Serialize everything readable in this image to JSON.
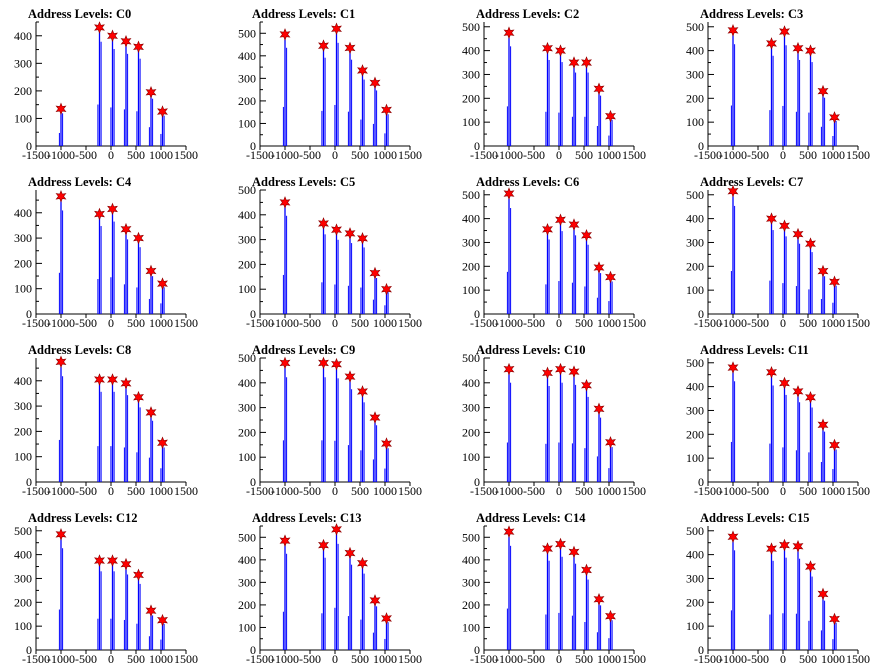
{
  "colors": {
    "background": "#ffffff",
    "axis": "#000000",
    "histogram": "#0000ff",
    "marker_fill": "#ff0000",
    "marker_stroke": "#8b0000"
  },
  "chart_data": [
    {
      "type": "bar",
      "title": "Address Levels: C0",
      "xlim": [
        -1500,
        1500
      ],
      "ylim": [
        0,
        450
      ],
      "ytick_step": 100,
      "xticks": [
        "-1500",
        "-1000",
        "-500",
        "0",
        "500",
        "1000",
        "1500"
      ],
      "peaks": [
        {
          "x": -1000,
          "y": 135
        },
        {
          "x": -230,
          "y": 430
        },
        {
          "x": 30,
          "y": 400
        },
        {
          "x": 300,
          "y": 380
        },
        {
          "x": 550,
          "y": 360
        },
        {
          "x": 800,
          "y": 195
        },
        {
          "x": 1030,
          "y": 125
        }
      ]
    },
    {
      "type": "bar",
      "title": "Address Levels: C1",
      "xlim": [
        -1500,
        1500
      ],
      "ylim": [
        0,
        550
      ],
      "ytick_step": 100,
      "xticks": [
        "-1500",
        "-1000",
        "-500",
        "0",
        "500",
        "1000",
        "1500"
      ],
      "peaks": [
        {
          "x": -1000,
          "y": 495
        },
        {
          "x": -230,
          "y": 445
        },
        {
          "x": 30,
          "y": 520
        },
        {
          "x": 300,
          "y": 435
        },
        {
          "x": 550,
          "y": 335
        },
        {
          "x": 800,
          "y": 280
        },
        {
          "x": 1030,
          "y": 160
        }
      ]
    },
    {
      "type": "bar",
      "title": "Address Levels: C2",
      "xlim": [
        -1500,
        1500
      ],
      "ylim": [
        0,
        520
      ],
      "ytick_step": 100,
      "xticks": [
        "-1500",
        "-1000",
        "-500",
        "0",
        "500",
        "1000",
        "1500"
      ],
      "peaks": [
        {
          "x": -1000,
          "y": 475
        },
        {
          "x": -230,
          "y": 410
        },
        {
          "x": 30,
          "y": 400
        },
        {
          "x": 300,
          "y": 350
        },
        {
          "x": 550,
          "y": 350
        },
        {
          "x": 800,
          "y": 240
        },
        {
          "x": 1030,
          "y": 125
        }
      ]
    },
    {
      "type": "bar",
      "title": "Address Levels: C3",
      "xlim": [
        -1500,
        1500
      ],
      "ylim": [
        0,
        520
      ],
      "ytick_step": 100,
      "xticks": [
        "-1500",
        "-1000",
        "-500",
        "0",
        "500",
        "1000",
        "1500"
      ],
      "peaks": [
        {
          "x": -1000,
          "y": 485
        },
        {
          "x": -230,
          "y": 430
        },
        {
          "x": 30,
          "y": 480
        },
        {
          "x": 300,
          "y": 410
        },
        {
          "x": 550,
          "y": 400
        },
        {
          "x": 800,
          "y": 230
        },
        {
          "x": 1030,
          "y": 120
        }
      ]
    },
    {
      "type": "bar",
      "title": "Address Levels: C4",
      "xlim": [
        -1500,
        1500
      ],
      "ylim": [
        0,
        490
      ],
      "ytick_step": 100,
      "xticks": [
        "-1500",
        "-1000",
        "-500",
        "0",
        "500",
        "1000",
        "1500"
      ],
      "peaks": [
        {
          "x": -1000,
          "y": 465
        },
        {
          "x": -230,
          "y": 395
        },
        {
          "x": 30,
          "y": 415
        },
        {
          "x": 300,
          "y": 335
        },
        {
          "x": 550,
          "y": 300
        },
        {
          "x": 800,
          "y": 170
        },
        {
          "x": 1030,
          "y": 120
        }
      ]
    },
    {
      "type": "bar",
      "title": "Address Levels: C5",
      "xlim": [
        -1500,
        1500
      ],
      "ylim": [
        0,
        500
      ],
      "ytick_step": 100,
      "xticks": [
        "-1500",
        "-1000",
        "-500",
        "0",
        "500",
        "1000",
        "1500"
      ],
      "peaks": [
        {
          "x": -1000,
          "y": 450
        },
        {
          "x": -230,
          "y": 365
        },
        {
          "x": 30,
          "y": 340
        },
        {
          "x": 300,
          "y": 325
        },
        {
          "x": 550,
          "y": 305
        },
        {
          "x": 800,
          "y": 165
        },
        {
          "x": 1030,
          "y": 100
        }
      ]
    },
    {
      "type": "bar",
      "title": "Address Levels: C6",
      "xlim": [
        -1500,
        1500
      ],
      "ylim": [
        0,
        520
      ],
      "ytick_step": 100,
      "xticks": [
        "-1500",
        "-1000",
        "-500",
        "0",
        "500",
        "1000",
        "1500"
      ],
      "peaks": [
        {
          "x": -1000,
          "y": 505
        },
        {
          "x": -230,
          "y": 355
        },
        {
          "x": 30,
          "y": 395
        },
        {
          "x": 300,
          "y": 375
        },
        {
          "x": 550,
          "y": 330
        },
        {
          "x": 800,
          "y": 195
        },
        {
          "x": 1030,
          "y": 155
        }
      ]
    },
    {
      "type": "bar",
      "title": "Address Levels: C7",
      "xlim": [
        -1500,
        1500
      ],
      "ylim": [
        0,
        520
      ],
      "ytick_step": 100,
      "xticks": [
        "-1500",
        "-1000",
        "-500",
        "0",
        "500",
        "1000",
        "1500"
      ],
      "peaks": [
        {
          "x": -1000,
          "y": 515
        },
        {
          "x": -230,
          "y": 400
        },
        {
          "x": 30,
          "y": 370
        },
        {
          "x": 300,
          "y": 335
        },
        {
          "x": 550,
          "y": 295
        },
        {
          "x": 800,
          "y": 180
        },
        {
          "x": 1030,
          "y": 135
        }
      ]
    },
    {
      "type": "bar",
      "title": "Address Levels: C8",
      "xlim": [
        -1500,
        1500
      ],
      "ylim": [
        0,
        490
      ],
      "ytick_step": 100,
      "xticks": [
        "-1500",
        "-1000",
        "-500",
        "0",
        "500",
        "1000",
        "1500"
      ],
      "peaks": [
        {
          "x": -1000,
          "y": 475
        },
        {
          "x": -230,
          "y": 405
        },
        {
          "x": 30,
          "y": 405
        },
        {
          "x": 300,
          "y": 390
        },
        {
          "x": 550,
          "y": 335
        },
        {
          "x": 800,
          "y": 275
        },
        {
          "x": 1030,
          "y": 155
        }
      ]
    },
    {
      "type": "bar",
      "title": "Address Levels: C9",
      "xlim": [
        -1500,
        1500
      ],
      "ylim": [
        0,
        500
      ],
      "ytick_step": 100,
      "xticks": [
        "-1500",
        "-1000",
        "-500",
        "0",
        "500",
        "1000",
        "1500"
      ],
      "peaks": [
        {
          "x": -1000,
          "y": 480
        },
        {
          "x": -230,
          "y": 480
        },
        {
          "x": 30,
          "y": 475
        },
        {
          "x": 300,
          "y": 425
        },
        {
          "x": 550,
          "y": 365
        },
        {
          "x": 800,
          "y": 260
        },
        {
          "x": 1030,
          "y": 155
        }
      ]
    },
    {
      "type": "bar",
      "title": "Address Levels: C10",
      "xlim": [
        -1500,
        1500
      ],
      "ylim": [
        0,
        500
      ],
      "ytick_step": 100,
      "xticks": [
        "-1500",
        "-1000",
        "-500",
        "0",
        "500",
        "1000",
        "1500"
      ],
      "peaks": [
        {
          "x": -1000,
          "y": 455
        },
        {
          "x": -230,
          "y": 440
        },
        {
          "x": 30,
          "y": 455
        },
        {
          "x": 300,
          "y": 445
        },
        {
          "x": 550,
          "y": 390
        },
        {
          "x": 800,
          "y": 295
        },
        {
          "x": 1030,
          "y": 160
        }
      ]
    },
    {
      "type": "bar",
      "title": "Address Levels: C11",
      "xlim": [
        -1500,
        1500
      ],
      "ylim": [
        0,
        520
      ],
      "ytick_step": 100,
      "xticks": [
        "-1500",
        "-1000",
        "-500",
        "0",
        "500",
        "1000",
        "1500"
      ],
      "peaks": [
        {
          "x": -1000,
          "y": 480
        },
        {
          "x": -230,
          "y": 460
        },
        {
          "x": 30,
          "y": 415
        },
        {
          "x": 300,
          "y": 380
        },
        {
          "x": 550,
          "y": 355
        },
        {
          "x": 800,
          "y": 240
        },
        {
          "x": 1030,
          "y": 155
        }
      ]
    },
    {
      "type": "bar",
      "title": "Address Levels: C12",
      "xlim": [
        -1500,
        1500
      ],
      "ylim": [
        0,
        520
      ],
      "ytick_step": 100,
      "xticks": [
        "-1500",
        "-1000",
        "-500",
        "0",
        "500",
        "1000",
        "1500"
      ],
      "peaks": [
        {
          "x": -1000,
          "y": 485
        },
        {
          "x": -230,
          "y": 375
        },
        {
          "x": 30,
          "y": 375
        },
        {
          "x": 300,
          "y": 360
        },
        {
          "x": 550,
          "y": 315
        },
        {
          "x": 800,
          "y": 165
        },
        {
          "x": 1030,
          "y": 125
        }
      ]
    },
    {
      "type": "bar",
      "title": "Address Levels: C13",
      "xlim": [
        -1500,
        1500
      ],
      "ylim": [
        0,
        550
      ],
      "ytick_step": 100,
      "xticks": [
        "-1500",
        "-1000",
        "-500",
        "0",
        "500",
        "1000",
        "1500"
      ],
      "peaks": [
        {
          "x": -1000,
          "y": 485
        },
        {
          "x": -230,
          "y": 465
        },
        {
          "x": 30,
          "y": 535
        },
        {
          "x": 300,
          "y": 430
        },
        {
          "x": 550,
          "y": 385
        },
        {
          "x": 800,
          "y": 220
        },
        {
          "x": 1030,
          "y": 140
        }
      ]
    },
    {
      "type": "bar",
      "title": "Address Levels: C14",
      "xlim": [
        -1500,
        1500
      ],
      "ylim": [
        0,
        550
      ],
      "ytick_step": 100,
      "xticks": [
        "-1500",
        "-1000",
        "-500",
        "0",
        "500",
        "1000",
        "1500"
      ],
      "peaks": [
        {
          "x": -1000,
          "y": 525
        },
        {
          "x": -230,
          "y": 450
        },
        {
          "x": 30,
          "y": 470
        },
        {
          "x": 300,
          "y": 435
        },
        {
          "x": 550,
          "y": 355
        },
        {
          "x": 800,
          "y": 225
        },
        {
          "x": 1030,
          "y": 150
        }
      ]
    },
    {
      "type": "bar",
      "title": "Address Levels: C15",
      "xlim": [
        -1500,
        1500
      ],
      "ylim": [
        0,
        520
      ],
      "ytick_step": 100,
      "xticks": [
        "-1500",
        "-1000",
        "-500",
        "0",
        "500",
        "1000",
        "1500"
      ],
      "peaks": [
        {
          "x": -1000,
          "y": 475
        },
        {
          "x": -230,
          "y": 425
        },
        {
          "x": 30,
          "y": 440
        },
        {
          "x": 300,
          "y": 435
        },
        {
          "x": 550,
          "y": 350
        },
        {
          "x": 800,
          "y": 235
        },
        {
          "x": 1030,
          "y": 130
        }
      ]
    }
  ]
}
